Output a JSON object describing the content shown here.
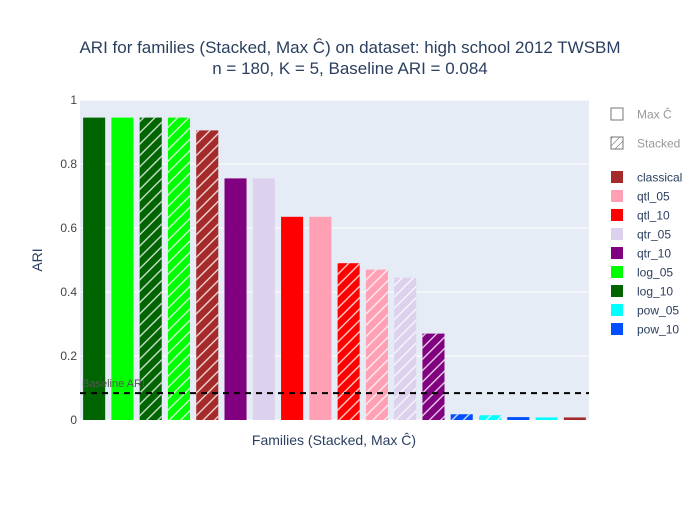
{
  "chart_data": {
    "type": "bar",
    "title_line1": "ARI for families (Stacked, Max Ĉ) on dataset: high school 2012 TWSBM",
    "title_line2": "n = 180, K = 5, Baseline ARI = 0.084",
    "xlabel": "Families (Stacked, Max Ĉ)",
    "ylabel": "ARI",
    "ylim": [
      0,
      1
    ],
    "yticks": [
      {
        "value": 0,
        "label": "0"
      },
      {
        "value": 0.2,
        "label": "0.2"
      },
      {
        "value": 0.4,
        "label": "0.4"
      },
      {
        "value": 0.6,
        "label": "0.6"
      },
      {
        "value": 0.8,
        "label": "0.8"
      },
      {
        "value": 1,
        "label": "1"
      }
    ],
    "baseline": {
      "value": 0.084,
      "label": "Baseline ARI"
    },
    "colors": {
      "classical": "#a52a2a",
      "qtl_05": "#ffa0b4",
      "qtl_10": "#ff0000",
      "qtr_05": "#dcd2ee",
      "qtr_10": "#800080",
      "log_05": "#00ff00",
      "log_10": "#006400",
      "pow_05": "#00ffff",
      "pow_10": "#0050ff"
    },
    "bars": [
      {
        "family": "log_10",
        "variant": "Max Ĉ",
        "value": 0.945
      },
      {
        "family": "log_05",
        "variant": "Max Ĉ",
        "value": 0.945
      },
      {
        "family": "log_10",
        "variant": "Stacked",
        "value": 0.945
      },
      {
        "family": "log_05",
        "variant": "Stacked",
        "value": 0.945
      },
      {
        "family": "classical",
        "variant": "Stacked",
        "value": 0.905
      },
      {
        "family": "qtr_10",
        "variant": "Max Ĉ",
        "value": 0.755
      },
      {
        "family": "qtr_05",
        "variant": "Max Ĉ",
        "value": 0.755
      },
      {
        "family": "qtl_10",
        "variant": "Max Ĉ",
        "value": 0.635
      },
      {
        "family": "qtl_05",
        "variant": "Max Ĉ",
        "value": 0.635
      },
      {
        "family": "qtl_10",
        "variant": "Stacked",
        "value": 0.49
      },
      {
        "family": "qtl_05",
        "variant": "Stacked",
        "value": 0.47
      },
      {
        "family": "qtr_05",
        "variant": "Stacked",
        "value": 0.445
      },
      {
        "family": "qtr_10",
        "variant": "Stacked",
        "value": 0.27
      },
      {
        "family": "pow_10",
        "variant": "Stacked",
        "value": 0.018
      },
      {
        "family": "pow_05",
        "variant": "Stacked",
        "value": 0.015
      },
      {
        "family": "pow_10",
        "variant": "Max Ĉ",
        "value": 0.009
      },
      {
        "family": "pow_05",
        "variant": "Max Ĉ",
        "value": 0.008
      },
      {
        "family": "classical",
        "variant": "Max Ĉ",
        "value": 0.008
      }
    ],
    "legend": {
      "placement": "right",
      "variants": [
        {
          "label": "Max Ĉ",
          "hatched": false
        },
        {
          "label": "Stacked",
          "hatched": true
        }
      ],
      "families": [
        "classical",
        "qtl_05",
        "qtl_10",
        "qtr_05",
        "qtr_10",
        "log_05",
        "log_10",
        "pow_05",
        "pow_10"
      ]
    }
  }
}
